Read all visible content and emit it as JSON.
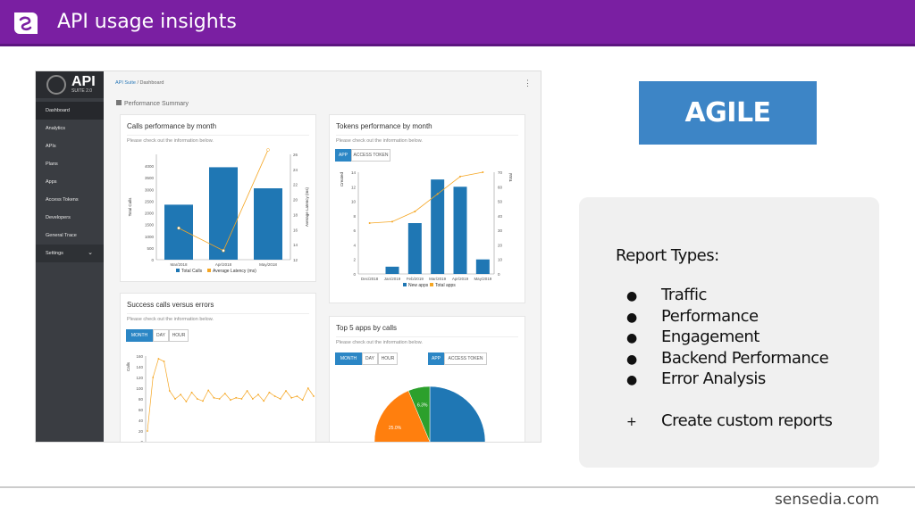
{
  "slide": {
    "title": "API usage insights",
    "brand": "sensedia.com",
    "logo_icon": "sensedia-logo-icon"
  },
  "app": {
    "logo_main": "API",
    "logo_sub": "SUITE 2.0",
    "sidebar": [
      {
        "label": "Dashboard"
      },
      {
        "label": "Analytics"
      },
      {
        "label": "APIs"
      },
      {
        "label": "Plans"
      },
      {
        "label": "Apps"
      },
      {
        "label": "Access Tokens"
      },
      {
        "label": "Developers"
      },
      {
        "label": "General Trace"
      },
      {
        "label": "Settings"
      }
    ],
    "breadcrumb": {
      "root": "API Suite",
      "sep": "/",
      "current": "Dashboard"
    },
    "section_title": "Performance Summary",
    "cards": {
      "calls": {
        "title": "Calls performance by month",
        "subtitle": "Please check out the information below."
      },
      "tokens": {
        "title": "Tokens performance by month",
        "subtitle": "Please check out the information below.",
        "buttons": [
          "APP",
          "ACCESS TOKEN"
        ]
      },
      "success": {
        "title": "Success calls versus errors",
        "subtitle": "Please check out the information below.",
        "buttons": [
          "MONTH",
          "DAY",
          "HOUR"
        ]
      },
      "top5": {
        "title": "Top 5 apps by calls",
        "subtitle": "Please check out the information below.",
        "buttons_left": [
          "MONTH",
          "DAY",
          "HOUR"
        ],
        "buttons_right": [
          "APP",
          "ACCESS TOKEN"
        ]
      }
    }
  },
  "agile_label": "AGILE",
  "report": {
    "heading": "Report Types:",
    "items": [
      "Traffic",
      "Performance",
      "Engagement",
      "Backend Performance",
      "Error Analysis"
    ],
    "bullet": "●",
    "custom_prefix": "+",
    "custom": "Create custom reports"
  },
  "chart_data": [
    {
      "type": "bar",
      "title": "Calls performance by month",
      "categories": [
        "Mar/2018",
        "Apr/2018",
        "May/2018"
      ],
      "series": [
        {
          "name": "Total Calls",
          "values": [
            2350,
            3950,
            3050
          ]
        },
        {
          "name": "Average Latency (ms)",
          "values": [
            16.2,
            13.2,
            26.6
          ]
        }
      ],
      "ylabel": "Total Calls",
      "ylabel2": "Average Latency (ms)",
      "ylim": [
        0,
        4500
      ],
      "ylim2": [
        12,
        26
      ],
      "yticks": [
        0,
        500,
        1000,
        1500,
        2000,
        2500,
        3000,
        3500,
        4000
      ],
      "yticks2": [
        12,
        14,
        16,
        18,
        20,
        22,
        24,
        26
      ],
      "color": "#1f77b4",
      "color2": "#f5a623"
    },
    {
      "type": "bar",
      "title": "Tokens performance by month",
      "categories": [
        "Dec/2018",
        "Jan/2019",
        "Feb/2019",
        "Mar/2019",
        "Apr/2019",
        "May/2019"
      ],
      "series": [
        {
          "name": "New apps",
          "values": [
            0,
            1,
            7,
            13,
            12,
            2
          ]
        },
        {
          "name": "Total apps",
          "values": [
            35,
            36,
            43,
            55,
            67,
            70
          ]
        }
      ],
      "ylabel": "Created",
      "ylabel2": "Total",
      "ylim": [
        0,
        14
      ],
      "ylim2": [
        0,
        70
      ],
      "yticks": [
        0,
        2,
        4,
        6,
        8,
        10,
        12,
        14
      ],
      "yticks2": [
        0,
        10,
        20,
        30,
        40,
        50,
        60,
        70
      ]
    },
    {
      "type": "line",
      "title": "Success calls versus errors",
      "ylabel": "Calls",
      "ylim": [
        0,
        160
      ],
      "yticks": [
        0,
        20,
        40,
        60,
        80,
        100,
        120,
        140,
        160
      ],
      "series": [
        {
          "values": [
            20,
            120,
            155,
            150,
            95,
            80,
            88,
            75,
            92,
            80,
            76,
            96,
            82,
            80,
            90,
            78,
            82,
            80,
            95,
            80,
            88,
            76,
            92,
            85,
            80,
            95,
            82,
            85,
            78,
            100,
            85
          ]
        }
      ]
    },
    {
      "type": "pie",
      "title": "Top 5 apps by calls",
      "slices": [
        {
          "label": "",
          "value": 68.7,
          "color": "#1f77b4"
        },
        {
          "label": "25.0%",
          "value": 25.0,
          "color": "#ff7f0e"
        },
        {
          "label": "6.3%",
          "value": 6.3,
          "color": "#2ca02c"
        }
      ]
    }
  ]
}
